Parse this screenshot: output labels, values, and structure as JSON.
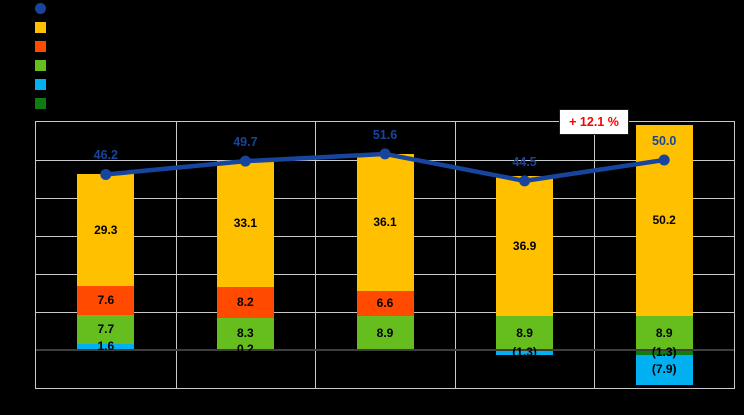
{
  "canvas": {
    "background": "#000000"
  },
  "legend": {
    "labels_visible": false,
    "items": [
      {
        "series": "total-line",
        "marker": "circle",
        "color": "#17459E"
      },
      {
        "series": "orange-bar",
        "marker": "square",
        "color": "#FFC000"
      },
      {
        "series": "red-bar",
        "marker": "square",
        "color": "#FF4A00"
      },
      {
        "series": "green-bar",
        "marker": "square",
        "color": "#65BD1E"
      },
      {
        "series": "cyan-bar",
        "marker": "square",
        "color": "#00B0F0"
      },
      {
        "series": "darkgreen-bar",
        "marker": "square",
        "color": "#0E7C12"
      }
    ]
  },
  "annotation": {
    "text": "+ 12.1 %",
    "color": "#FF0000"
  },
  "chart_data": {
    "type": "bar",
    "subtype": "stacked-bar-with-total-line",
    "categories": [
      "",
      "",
      "",
      "",
      ""
    ],
    "category_labels_visible": false,
    "axis_tick_labels_visible": false,
    "ylim": [
      -10,
      60
    ],
    "grid_step": 10,
    "grid_color": "#C9C9C9",
    "zero_line_color": "#3E3E3E",
    "bar_label_color": "#000000",
    "line_label_color": "#17459E",
    "stack_order": [
      "darkgreen-bar",
      "cyan-bar",
      "green-bar",
      "red-bar",
      "orange-bar"
    ],
    "series": [
      {
        "id": "total-line",
        "type": "line",
        "color": "#17459E",
        "values": [
          46.2,
          49.7,
          51.6,
          44.5,
          50.0
        ],
        "labels": [
          "46.2",
          "49.7",
          "51.6",
          "44.5",
          "50.0"
        ]
      },
      {
        "id": "orange-bar",
        "type": "bar",
        "color": "#FFC000",
        "values": [
          29.3,
          33.1,
          36.1,
          36.9,
          50.2
        ],
        "labels": [
          "29.3",
          "33.1",
          "36.1",
          "36.9",
          "50.2"
        ]
      },
      {
        "id": "red-bar",
        "type": "bar",
        "color": "#FF4A00",
        "values": [
          7.6,
          8.2,
          6.6,
          0,
          0
        ],
        "labels": [
          "7.6",
          "8.2",
          "6.6",
          "",
          ""
        ]
      },
      {
        "id": "green-bar",
        "type": "bar",
        "color": "#65BD1E",
        "values": [
          7.7,
          8.3,
          8.9,
          8.9,
          8.9
        ],
        "labels": [
          "7.7",
          "8.3",
          "8.9",
          "8.9",
          "8.9"
        ]
      },
      {
        "id": "cyan-bar",
        "type": "bar",
        "color": "#00B0F0",
        "values": [
          1.6,
          0.2,
          0,
          -1.3,
          -7.9
        ],
        "labels": [
          "1.6",
          "0.2",
          "",
          "(1.3)",
          "(7.9)"
        ]
      },
      {
        "id": "darkgreen-bar",
        "type": "bar",
        "color": "#0E7C12",
        "values": [
          0,
          0,
          0,
          0,
          -1.3
        ],
        "labels": [
          "",
          "",
          "",
          "",
          "(1.3)"
        ]
      }
    ],
    "annotation": "+ 12.1 %"
  }
}
